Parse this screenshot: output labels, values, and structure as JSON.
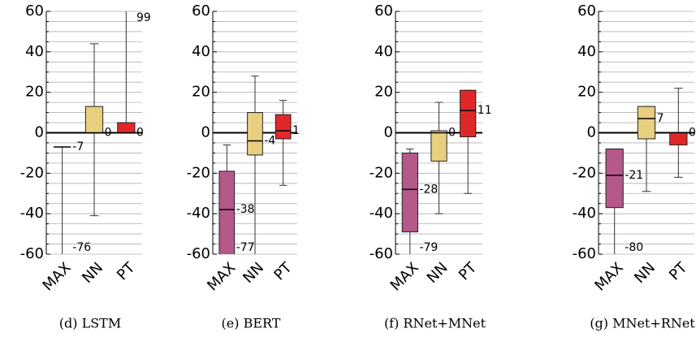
{
  "chart_data": [
    {
      "type": "box",
      "caption": "(d) LSTM",
      "categories": [
        "MAX",
        "NN",
        "PT"
      ],
      "colors": [
        "#b5588a",
        "#e8cf7f",
        "#e0282a"
      ],
      "ylim": [
        -60,
        60
      ],
      "yticks": [
        -60,
        -40,
        -20,
        0,
        20,
        40,
        60
      ],
      "grid": true,
      "minor_yticks": [
        -55,
        -50,
        -45,
        -35,
        -30,
        -25,
        -15,
        -10,
        -5,
        5,
        10,
        15,
        25,
        30,
        35,
        45,
        50,
        55
      ],
      "boxes": [
        {
          "low": -76,
          "q1": -7,
          "median": -7,
          "q3": -7,
          "high": -7,
          "value_labels": [
            -7,
            -76
          ]
        },
        {
          "low": -41,
          "q1": 0,
          "median": 0,
          "q3": 13,
          "high": 44,
          "value_labels": [
            0
          ]
        },
        {
          "low": 0,
          "q1": 0,
          "median": 0,
          "q3": 5,
          "high": 99,
          "value_labels": [
            0,
            99
          ]
        }
      ]
    },
    {
      "type": "box",
      "caption": "(e) BERT",
      "categories": [
        "MAX",
        "NN",
        "PT"
      ],
      "colors": [
        "#b5588a",
        "#e8cf7f",
        "#e0282a"
      ],
      "ylim": [
        -60,
        60
      ],
      "yticks": [
        -60,
        -40,
        -20,
        0,
        20,
        40,
        60
      ],
      "grid": true,
      "minor_yticks": [
        -55,
        -50,
        -45,
        -35,
        -30,
        -25,
        -15,
        -10,
        -5,
        5,
        10,
        15,
        25,
        30,
        35,
        45,
        50,
        55
      ],
      "boxes": [
        {
          "low": -77,
          "q1": -65,
          "median": -38,
          "q3": -19,
          "high": -6,
          "value_labels": [
            -38,
            -77
          ]
        },
        {
          "low": -70,
          "q1": -11,
          "median": -4,
          "q3": 10,
          "high": 28,
          "value_labels": [
            -4
          ]
        },
        {
          "low": -26,
          "q1": -3,
          "median": 1,
          "q3": 9,
          "high": 16,
          "value_labels": [
            1
          ]
        }
      ]
    },
    {
      "type": "box",
      "caption": "(f) RNet+MNet",
      "categories": [
        "MAX",
        "NN",
        "PT"
      ],
      "colors": [
        "#b5588a",
        "#e8cf7f",
        "#e0282a"
      ],
      "ylim": [
        -60,
        60
      ],
      "yticks": [
        -60,
        -40,
        -20,
        0,
        20,
        40,
        60
      ],
      "grid": true,
      "minor_yticks": [
        -55,
        -50,
        -45,
        -35,
        -30,
        -25,
        -15,
        -10,
        -5,
        5,
        10,
        15,
        25,
        30,
        35,
        45,
        50,
        55
      ],
      "boxes": [
        {
          "low": -79,
          "q1": -49,
          "median": -28,
          "q3": -10,
          "high": -8,
          "value_labels": [
            -28,
            -79
          ]
        },
        {
          "low": -40,
          "q1": -14,
          "median": 0,
          "q3": 1,
          "high": 15,
          "value_labels": [
            0
          ]
        },
        {
          "low": -30,
          "q1": -2,
          "median": 11,
          "q3": 21,
          "high": 21,
          "value_labels": [
            11
          ]
        }
      ]
    },
    {
      "type": "box",
      "caption": "(g) MNet+RNet",
      "categories": [
        "MAX",
        "NN",
        "PT"
      ],
      "colors": [
        "#b5588a",
        "#e8cf7f",
        "#e0282a"
      ],
      "ylim": [
        -60,
        60
      ],
      "yticks": [
        -60,
        -40,
        -20,
        0,
        20,
        40,
        60
      ],
      "grid": true,
      "minor_yticks": [
        -55,
        -50,
        -45,
        -35,
        -30,
        -25,
        -15,
        -10,
        -5,
        5,
        10,
        15,
        25,
        30,
        35,
        45,
        50,
        55
      ],
      "boxes": [
        {
          "low": -80,
          "q1": -37,
          "median": -21,
          "q3": -8,
          "high": -8,
          "value_labels": [
            -21,
            -80
          ]
        },
        {
          "low": -29,
          "q1": -3,
          "median": 7,
          "q3": 13,
          "high": 13,
          "value_labels": [
            7
          ]
        },
        {
          "low": -22,
          "q1": -6,
          "median": 0,
          "q3": 0,
          "high": 22,
          "value_labels": [
            0
          ]
        }
      ]
    }
  ]
}
